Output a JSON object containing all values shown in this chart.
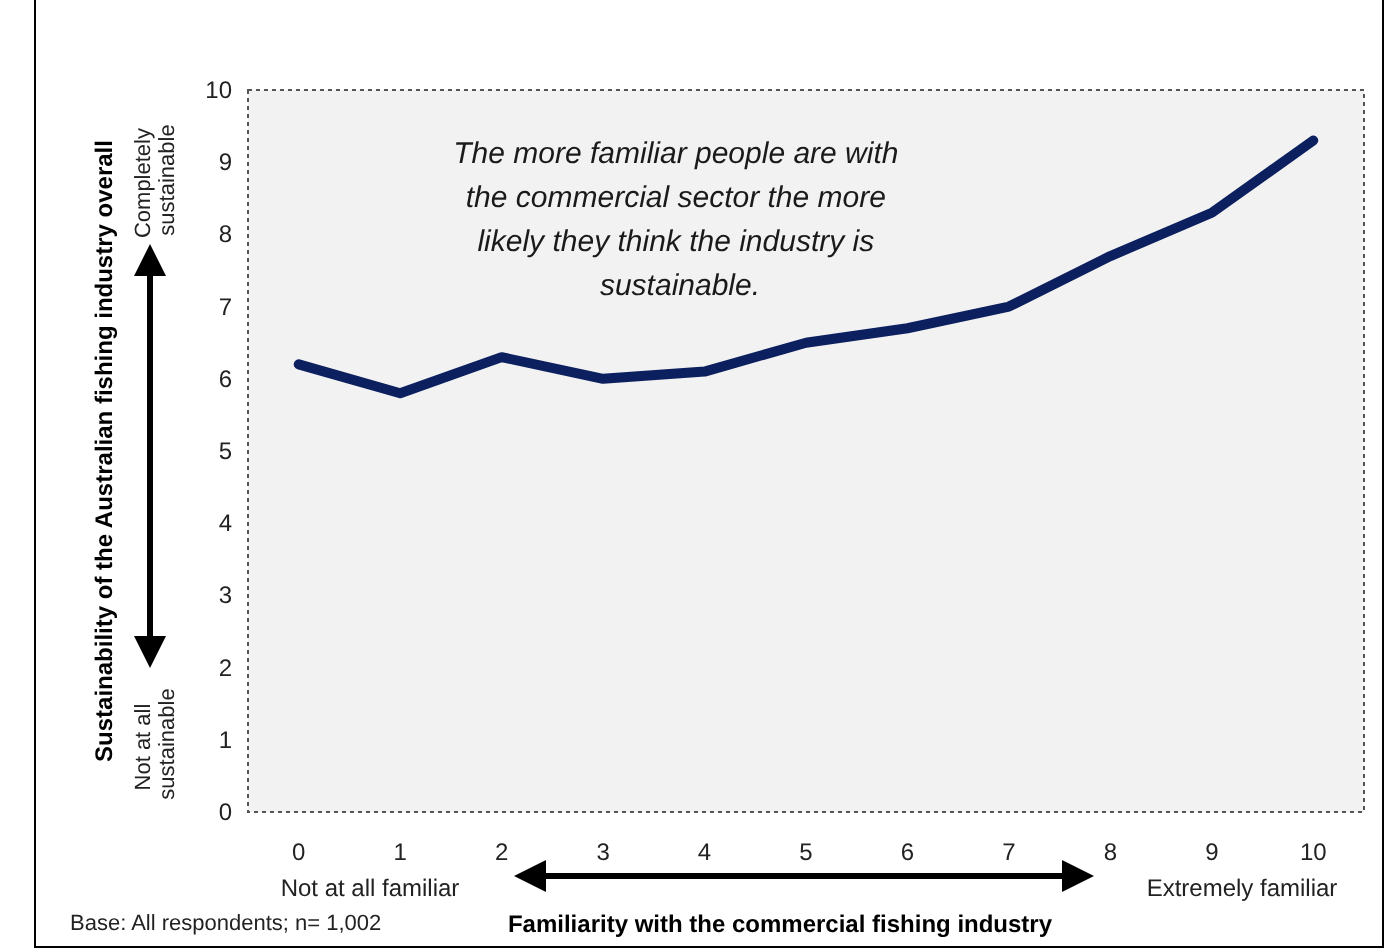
{
  "chart_data": {
    "type": "line",
    "ylabel": "Sustainability of the Australian fishing industry overall",
    "xlabel": "Familiarity with the commercial fishing industry",
    "categories": [
      "0",
      "1",
      "2",
      "3",
      "4",
      "5",
      "6",
      "7",
      "8",
      "9",
      "10"
    ],
    "series": [
      {
        "color": "#0c1f5e",
        "values": [
          6.2,
          5.8,
          6.3,
          6.0,
          6.1,
          6.5,
          6.7,
          7.0,
          7.7,
          8.3,
          9.3
        ]
      }
    ],
    "ylim": [
      0,
      10
    ],
    "yticks": [
      0,
      1,
      2,
      3,
      4,
      5,
      6,
      7,
      8,
      9,
      10
    ],
    "grid": false,
    "marker": "none",
    "line_style": "solid",
    "annotations": [
      "The more familiar people are with the commercial sector the more likely they think the industry is sustainable.",
      "Completely sustainable",
      "Not at all sustainable",
      "Not at all familiar",
      "Extremely familiar",
      "Base: All respondents; n= 1,002"
    ]
  }
}
